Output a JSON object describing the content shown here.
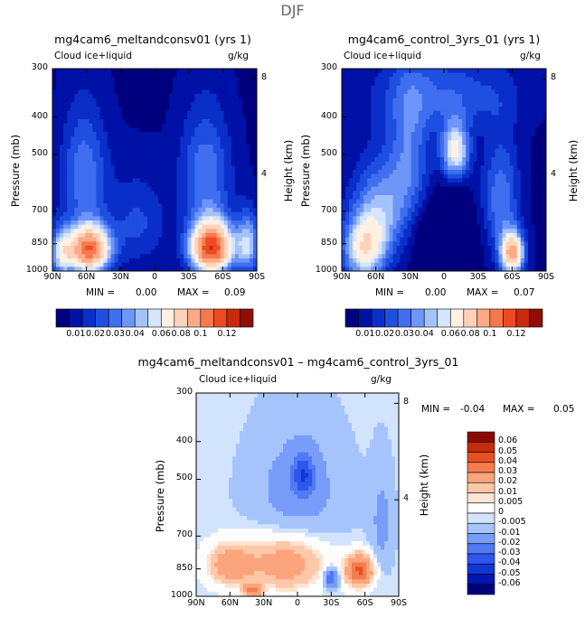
{
  "page_title": "DJF",
  "palettes": {
    "absolute": [
      "#00007f",
      "#0011a6",
      "#0a2fc8",
      "#1f4fe0",
      "#3f6ff0",
      "#6e96f8",
      "#a5c3fb",
      "#d6e6fe",
      "#fff0e4",
      "#fdd2b8",
      "#fbaa86",
      "#f6784f",
      "#ec4a22",
      "#c92a0c",
      "#8f0f04"
    ],
    "difference": [
      "#00007f",
      "#0016b0",
      "#1236d6",
      "#2d57ec",
      "#5079f4",
      "#789cf9",
      "#a6c4fc",
      "#d2e3fe",
      "#fdfdfd",
      "#fee4d2",
      "#fdc7a8",
      "#fca47c",
      "#f67b4f",
      "#e8511f",
      "#c42c0c",
      "#8c0a02"
    ]
  },
  "chart_data": [
    {
      "type": "heatmap",
      "title": "mg4cam6_meltandconsv01 (yrs 1)",
      "variable": "Cloud ice+liquid",
      "units": "g/kg",
      "xlabel": "",
      "ylabel": "Pressure (mb)",
      "y2label": "Height (km)",
      "x_ticks": [
        "90N",
        "60N",
        "30N",
        "0",
        "30S",
        "60S",
        "90S"
      ],
      "x_tick_values": [
        90,
        60,
        30,
        0,
        -30,
        -60,
        -90
      ],
      "y_ticks": [
        "300",
        "400",
        "500",
        "700",
        "850",
        "1000"
      ],
      "y_tick_values": [
        300,
        400,
        500,
        700,
        850,
        1000
      ],
      "y2_ticks": [
        "8",
        "4"
      ],
      "y2_tick_values": [
        8,
        4
      ],
      "x_range": [
        90,
        -90
      ],
      "y_range": [
        300,
        1000
      ],
      "min_label": "MIN =",
      "min_value": "0.00",
      "max_label": "MAX =",
      "max_value": "0.09",
      "colorbar_labels": [
        "0.01",
        "0.02",
        "0.03",
        "0.04",
        "0.06",
        "0.08",
        "0.1",
        "0.12"
      ],
      "blobs": [
        {
          "lat": 58,
          "p": 880,
          "value": 0.075,
          "slat": 18,
          "sp": 120
        },
        {
          "lat": -50,
          "p": 870,
          "value": 0.085,
          "slat": 18,
          "sp": 130
        },
        {
          "lat": 82,
          "p": 900,
          "value": 0.03,
          "slat": 10,
          "sp": 130
        },
        {
          "lat": -82,
          "p": 850,
          "value": 0.03,
          "slat": 10,
          "sp": 150
        },
        {
          "lat": 62,
          "p": 560,
          "value": 0.02,
          "slat": 20,
          "sp": 200
        },
        {
          "lat": -45,
          "p": 560,
          "value": 0.02,
          "slat": 22,
          "sp": 200
        },
        {
          "lat": 15,
          "p": 750,
          "value": 0.012,
          "slat": 25,
          "sp": 200
        }
      ]
    },
    {
      "type": "heatmap",
      "title": "mg4cam6_control_3yrs_01 (yrs 1)",
      "variable": "Cloud ice+liquid",
      "units": "g/kg",
      "xlabel": "",
      "ylabel": "Pressure (mb)",
      "y2label": "Height (km)",
      "x_ticks": [
        "90N",
        "60N",
        "30N",
        "0",
        "30S",
        "60S",
        "90S"
      ],
      "x_tick_values": [
        90,
        60,
        30,
        0,
        -30,
        -60,
        -90
      ],
      "y_ticks": [
        "300",
        "400",
        "500",
        "700",
        "850",
        "1000"
      ],
      "y_tick_values": [
        300,
        400,
        500,
        700,
        850,
        1000
      ],
      "y2_ticks": [
        "8",
        "4"
      ],
      "y2_tick_values": [
        8,
        4
      ],
      "x_range": [
        90,
        -90
      ],
      "y_range": [
        300,
        1000
      ],
      "min_label": "MIN =",
      "min_value": "0.00",
      "max_label": "MAX =",
      "max_value": "0.07",
      "colorbar_labels": [
        "0.01",
        "0.02",
        "0.03",
        "0.04",
        "0.06",
        "0.08",
        "0.1",
        "0.12"
      ],
      "blobs": [
        {
          "lat": 70,
          "p": 880,
          "value": 0.04,
          "slat": 18,
          "sp": 160
        },
        {
          "lat": 55,
          "p": 700,
          "value": 0.025,
          "slat": 25,
          "sp": 200
        },
        {
          "lat": -60,
          "p": 900,
          "value": 0.06,
          "slat": 10,
          "sp": 110
        },
        {
          "lat": -50,
          "p": 650,
          "value": 0.02,
          "slat": 16,
          "sp": 220
        },
        {
          "lat": -10,
          "p": 490,
          "value": 0.04,
          "slat": 12,
          "sp": 80
        },
        {
          "lat": 30,
          "p": 500,
          "value": 0.018,
          "slat": 18,
          "sp": 200
        },
        {
          "lat": 0,
          "p": 350,
          "value": 0.015,
          "slat": 60,
          "sp": 80
        },
        {
          "lat": 0,
          "p": 820,
          "value": -0.02,
          "slat": 22,
          "sp": 160
        }
      ]
    },
    {
      "type": "heatmap",
      "title": "mg4cam6_meltandconsv01 – mg4cam6_control_3yrs_01",
      "variable": "Cloud ice+liquid",
      "units": "g/kg",
      "xlabel": "",
      "ylabel": "Pressure (mb)",
      "y2label": "Height (km)",
      "x_ticks": [
        "90N",
        "60N",
        "30N",
        "0",
        "30S",
        "60S",
        "90S"
      ],
      "x_tick_values": [
        90,
        60,
        30,
        0,
        -30,
        -60,
        -90
      ],
      "y_ticks": [
        "300",
        "400",
        "500",
        "700",
        "850",
        "1000"
      ],
      "y_tick_values": [
        300,
        400,
        500,
        700,
        850,
        1000
      ],
      "y2_ticks": [
        "8",
        "4"
      ],
      "y2_tick_values": [
        8,
        4
      ],
      "x_range": [
        90,
        -90
      ],
      "y_range": [
        300,
        1000
      ],
      "min_label": "MIN =",
      "min_value": "-0.04",
      "max_label": "MAX =",
      "max_value": "0.05",
      "colorbar_labels": [
        "0.06",
        "0.05",
        "0.04",
        "0.03",
        "0.02",
        "0.01",
        "0.005",
        "0",
        "-0.005",
        "-0.01",
        "-0.02",
        "-0.03",
        "-0.04",
        "-0.05",
        "-0.06"
      ],
      "blobs": [
        {
          "lat": 10,
          "p": 820,
          "value": 0.02,
          "slat": 35,
          "sp": 140
        },
        {
          "lat": -55,
          "p": 860,
          "value": 0.035,
          "slat": 12,
          "sp": 80
        },
        {
          "lat": 60,
          "p": 830,
          "value": 0.02,
          "slat": 20,
          "sp": 100
        },
        {
          "lat": 40,
          "p": 970,
          "value": 0.025,
          "slat": 8,
          "sp": 40
        },
        {
          "lat": -30,
          "p": 900,
          "value": -0.03,
          "slat": 6,
          "sp": 50
        },
        {
          "lat": -5,
          "p": 490,
          "value": -0.03,
          "slat": 10,
          "sp": 60
        },
        {
          "lat": 0,
          "p": 550,
          "value": -0.01,
          "slat": 40,
          "sp": 200
        },
        {
          "lat": -75,
          "p": 650,
          "value": -0.008,
          "slat": 10,
          "sp": 200
        }
      ]
    }
  ]
}
